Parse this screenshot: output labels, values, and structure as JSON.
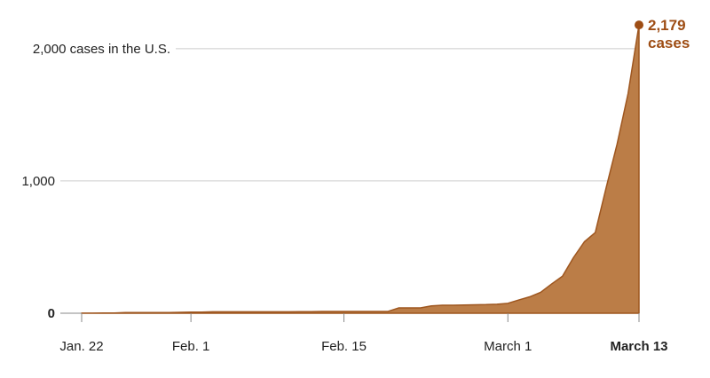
{
  "chart_data": {
    "type": "area",
    "categories": [
      "Jan. 22",
      null,
      null,
      null,
      null,
      null,
      null,
      null,
      null,
      null,
      "Feb. 1",
      null,
      null,
      null,
      null,
      null,
      null,
      null,
      null,
      null,
      null,
      null,
      null,
      null,
      "Feb. 15",
      null,
      null,
      null,
      null,
      null,
      null,
      null,
      null,
      null,
      null,
      null,
      null,
      null,
      null,
      "March 1",
      null,
      null,
      null,
      null,
      null,
      null,
      null,
      null,
      null,
      null,
      null,
      "March 13"
    ],
    "values": [
      1,
      1,
      2,
      2,
      5,
      5,
      5,
      5,
      5,
      7,
      8,
      8,
      11,
      11,
      11,
      11,
      11,
      11,
      11,
      11,
      12,
      12,
      13,
      13,
      13,
      13,
      13,
      13,
      13,
      40,
      40,
      40,
      55,
      60,
      60,
      62,
      64,
      65,
      68,
      75,
      100,
      124,
      158,
      221,
      280,
      420,
      540,
      610,
      950,
      1280,
      1660,
      2179
    ],
    "value_labels": [
      null,
      null,
      null,
      null,
      null,
      null,
      null,
      null,
      null,
      null,
      null,
      null,
      null,
      null,
      null,
      null,
      null,
      null,
      null,
      null,
      null,
      null,
      null,
      null,
      null,
      null,
      null,
      null,
      null,
      null,
      null,
      null,
      null,
      null,
      null,
      null,
      null,
      null,
      null,
      null,
      null,
      null,
      null,
      null,
      null,
      null,
      null,
      null,
      null,
      null,
      null,
      "2,179"
    ],
    "annotation": "cases",
    "color": "#bb7d47",
    "line_color": "#9e561f",
    "label_color": "#9e4d14",
    "ylim": [
      0,
      2200
    ],
    "yticks": [
      0,
      {
        "value": 1000,
        "label": "1,000"
      },
      {
        "value": 2000,
        "label": "2,000 cases in the U.S."
      }
    ],
    "grid": true
  }
}
